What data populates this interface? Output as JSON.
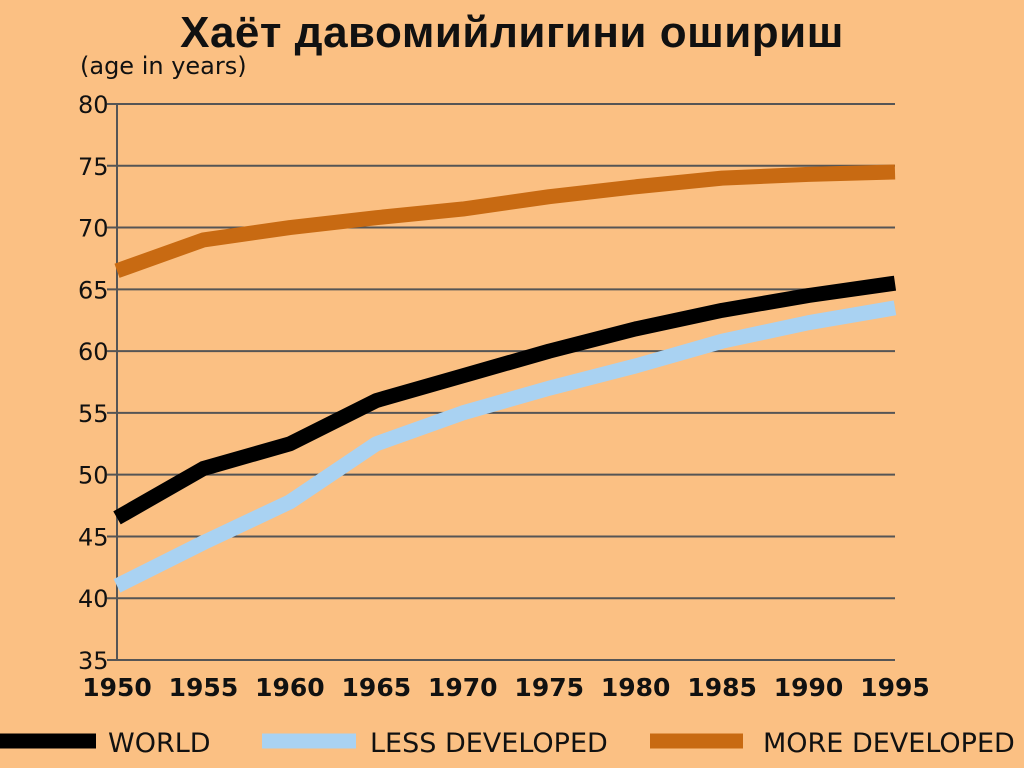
{
  "page": {
    "title": "Хаёт давомийлигини ошириш"
  },
  "chart_data": {
    "type": "line",
    "title": "Хаёт давомийлигини ошириш",
    "ylabel": "(age in years)",
    "xlabel": "",
    "xlim": [
      1950,
      1995
    ],
    "ylim": [
      35,
      80
    ],
    "x_ticks": [
      1950,
      1955,
      1960,
      1965,
      1970,
      1975,
      1980,
      1985,
      1990,
      1995
    ],
    "y_ticks": [
      35,
      40,
      45,
      50,
      55,
      60,
      65,
      70,
      75,
      80
    ],
    "grid": true,
    "legend_position": "bottom",
    "x": [
      1950,
      1955,
      1960,
      1965,
      1970,
      1975,
      1980,
      1985,
      1990,
      1995
    ],
    "series": [
      {
        "name": "WORLD",
        "color": "#000000",
        "values": [
          46.5,
          50.5,
          52.5,
          56.0,
          58.0,
          60.0,
          61.8,
          63.3,
          64.5,
          65.5
        ]
      },
      {
        "name": "LESS DEVELOPED",
        "color": "#A9D2F2",
        "values": [
          41.0,
          44.5,
          47.8,
          52.5,
          55.0,
          57.0,
          58.8,
          60.8,
          62.3,
          63.5
        ]
      },
      {
        "name": "MORE DEVELOPED",
        "color": "#C86A12",
        "values": [
          66.5,
          69.0,
          70.0,
          70.8,
          71.5,
          72.5,
          73.3,
          74.0,
          74.3,
          74.5
        ]
      }
    ]
  }
}
